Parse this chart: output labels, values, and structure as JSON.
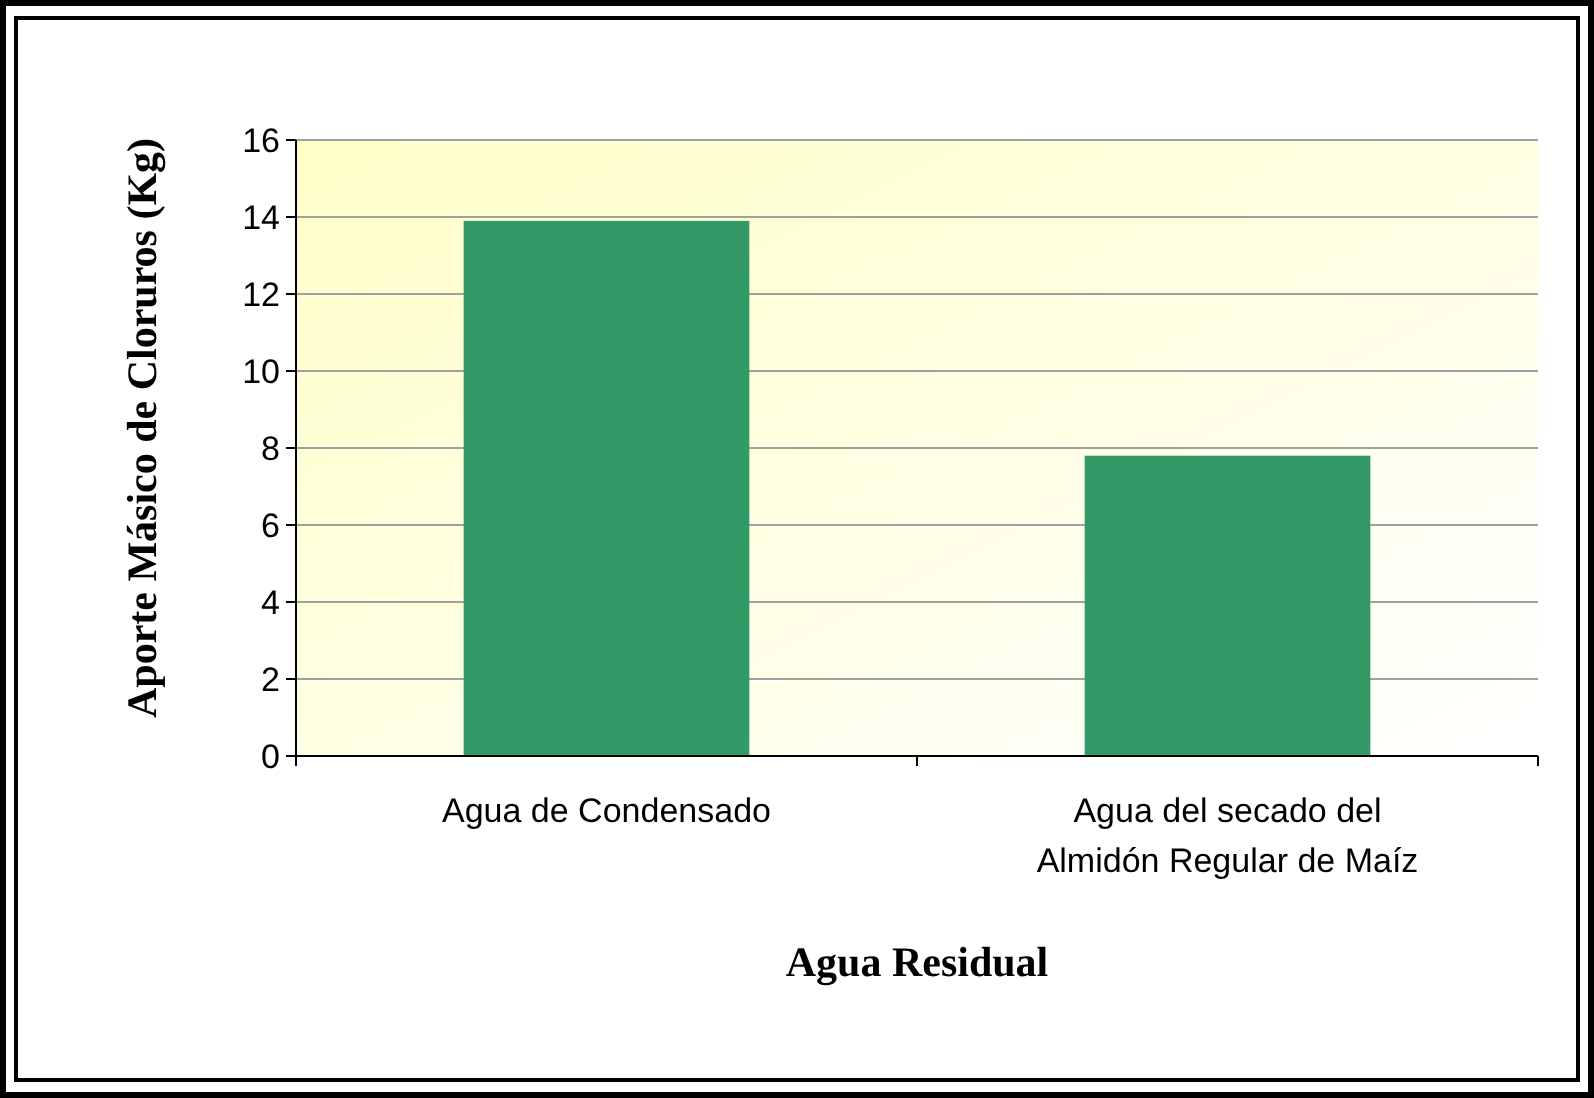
{
  "chart_data": {
    "type": "bar",
    "xlabel": "Agua Residual",
    "ylabel": "Aporte Másico de Cloruros (Kg)",
    "categories": [
      "Agua de Condensado",
      "Agua del secado del Almidón Regular de Maíz"
    ],
    "values": [
      13.9,
      7.8
    ],
    "color": "#339966",
    "ylim": [
      0,
      16
    ],
    "yticks": [
      0,
      2,
      4,
      6,
      8,
      10,
      12,
      14,
      16
    ],
    "grid": "y"
  }
}
